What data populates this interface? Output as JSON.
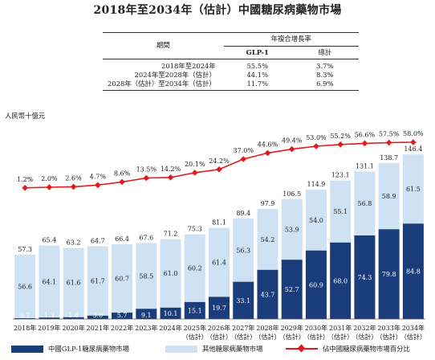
{
  "title": "2018年至2034年（估計）中國糖尿病藥物市場",
  "unit_label": "人民幣十億元",
  "cagr_table": {
    "header_group": "年複合增長率",
    "col_period": "期間",
    "col_glp1": "GLP-1",
    "col_total": "總計",
    "rows": [
      {
        "period": "2018年至2024年",
        "glp1": "55.5%",
        "total": "3.7%"
      },
      {
        "period": "2024年至2028年（估計）",
        "glp1": "44.1%",
        "total": "8.3%"
      },
      {
        "period": "2028年（估計）至2034年（估計）",
        "glp1": "11.7%",
        "total": "6.9%"
      }
    ]
  },
  "chart_data": {
    "type": "bar",
    "stacked": true,
    "categories": [
      "2018年",
      "2019年",
      "2020年",
      "2021年",
      "2022年",
      "2023年",
      "2024年",
      "2025年",
      "2026年",
      "2027年",
      "2028年",
      "2029年",
      "2030年",
      "2031年",
      "2032年",
      "2033年",
      "2034年"
    ],
    "categories_sub": [
      "",
      "",
      "",
      "",
      "",
      "",
      "",
      "（估計）",
      "（估計）",
      "（估計）",
      "（估計）",
      "（估計）",
      "（估計）",
      "（估計）",
      "（估計）",
      "（估計）",
      "（估計）"
    ],
    "series": [
      {
        "name": "中國GLP-1糖尿病藥物市場",
        "color": "#1a3c7a",
        "values": [
          0.7,
          1.3,
          1.6,
          3.0,
          5.7,
          9.1,
          10.1,
          15.1,
          19.7,
          33.1,
          43.7,
          52.7,
          60.9,
          68.0,
          74.3,
          79.8,
          84.8
        ]
      },
      {
        "name": "其他糖尿病藥物市場",
        "color": "#cfe2f3",
        "values": [
          56.6,
          64.1,
          61.6,
          61.7,
          60.7,
          58.5,
          61.0,
          60.2,
          61.4,
          56.3,
          54.2,
          53.9,
          54.0,
          55.1,
          56.8,
          58.9,
          61.5
        ]
      }
    ],
    "totals": [
      57.3,
      65.4,
      63.2,
      64.7,
      66.4,
      67.6,
      71.2,
      75.3,
      81.1,
      89.4,
      97.9,
      106.5,
      114.9,
      123.1,
      131.1,
      138.7,
      146.4
    ],
    "line": {
      "name": "佔中國糖尿病藥物市場百分比",
      "color": "#e31a1c",
      "values": [
        1.2,
        2.0,
        2.6,
        4.7,
        8.6,
        13.5,
        14.2,
        20.1,
        24.2,
        37.0,
        44.6,
        49.4,
        53.0,
        55.2,
        56.6,
        57.5,
        58.0
      ],
      "labels": [
        "1.2%",
        "2.0%",
        "2.6%",
        "4.7%",
        "8.6%",
        "13.5%",
        "14.2%",
        "20.1%",
        "24.2%",
        "37.0%",
        "44.6%",
        "49.4%",
        "53.0%",
        "55.2%",
        "56.6%",
        "57.5%",
        "58.0%"
      ]
    },
    "ylim": [
      0,
      150
    ],
    "grid": false,
    "legend_position": "bottom"
  }
}
